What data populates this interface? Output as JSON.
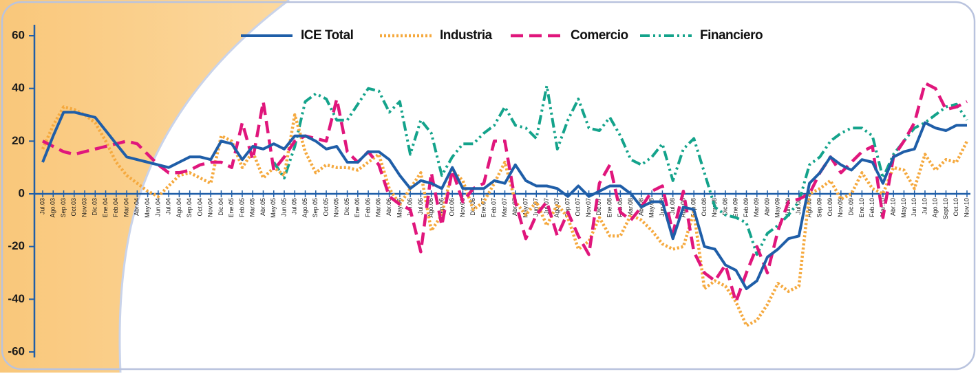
{
  "chart_data": {
    "type": "line",
    "categories": [
      "Jul.03",
      "Ago.03",
      "Sep.03",
      "Oct.03",
      "Nov.03",
      "Dic.03",
      "Ene.04",
      "Feb.04",
      "Mar.04",
      "Abr.04",
      "May.04",
      "Jun.04",
      "Jul.04",
      "Ago.04",
      "Sep.04",
      "Oct.04",
      "Nov.04",
      "Dic.04",
      "Ene.05",
      "Feb.05",
      "Mar.05",
      "Abr.05",
      "May.05",
      "Jun.05",
      "Jul.05",
      "Ago.05",
      "Sep.05",
      "Oct.05",
      "Nov.05",
      "Dic.05",
      "Ene.06",
      "Feb.06",
      "Mar.06",
      "Abr.06",
      "May.06",
      "Jun.06",
      "Jul.06",
      "Ago.06",
      "Sep.06",
      "Oct.06",
      "Nov.06",
      "Dic.06",
      "Ene.07",
      "Feb.07",
      "Mar.07",
      "Abr.07",
      "May.07",
      "Jun.07",
      "Jul.07",
      "Ago.07",
      "Sep.07",
      "Oct.07",
      "Nov.07",
      "Dic.07",
      "Ene.08",
      "Feb.08",
      "Mar.08",
      "Abr.08",
      "May.08",
      "Jun.08",
      "Jul.08",
      "Ago.08",
      "Sep.08",
      "Oct.08",
      "Nov.08",
      "Dic.08",
      "Ene.09",
      "Feb.09",
      "Mar.09",
      "Abr.09",
      "May.09",
      "Jun.09",
      "Jul.09",
      "Ago.09",
      "Sep.09",
      "Oct.09",
      "Nov.09",
      "Dic.09",
      "Ene.10",
      "Feb.10",
      "Mar.10",
      "Abr.10",
      "May.10",
      "Jun.10",
      "Jul.10",
      "Ago.10",
      "Sept.10",
      "Oct.10",
      "Nov.10"
    ],
    "series": [
      {
        "name": "ICE Total",
        "color": "#1f5ea8",
        "line_style": "solid",
        "values": [
          12,
          22,
          31,
          31,
          30,
          29,
          24,
          19,
          14,
          13,
          12,
          11,
          10,
          12,
          14,
          14,
          13,
          20,
          19,
          13,
          18,
          17,
          19,
          17,
          22,
          22,
          20,
          17,
          18,
          12,
          12,
          16,
          16,
          13,
          7,
          2,
          5,
          4,
          2,
          10,
          2,
          2,
          2,
          5,
          4,
          11,
          5,
          3,
          3,
          2,
          -1,
          3,
          -1,
          1,
          3,
          3,
          0,
          -5,
          -3,
          -3,
          -17,
          -5,
          -6,
          -20,
          -21,
          -27,
          -29,
          -36,
          -33,
          -24,
          -21,
          -17,
          -16,
          4,
          8,
          14,
          11,
          9,
          13,
          12,
          4,
          14,
          16,
          17,
          27,
          25,
          24,
          26,
          26
        ]
      },
      {
        "name": "Industria",
        "color": "#f5a93e",
        "line_style": "dotted",
        "values": [
          17,
          26,
          33,
          32,
          30,
          27,
          20,
          12,
          7,
          4,
          1,
          -1,
          3,
          7,
          8,
          6,
          4,
          22,
          20,
          10,
          16,
          6,
          10,
          7,
          30,
          16,
          8,
          11,
          10,
          10,
          9,
          12,
          15,
          2,
          -4,
          2,
          8,
          -14,
          -8,
          9,
          5,
          -6,
          -3,
          4,
          12,
          -3,
          -8,
          -3,
          -12,
          -4,
          -9,
          -21,
          -18,
          -9,
          -16,
          -16,
          -8,
          -10,
          -14,
          -19,
          -21,
          -20,
          -7,
          -36,
          -33,
          -35,
          -41,
          -50,
          -48,
          -42,
          -34,
          -37,
          -35,
          0,
          2,
          5,
          -2,
          0,
          8,
          2,
          0,
          10,
          9,
          2,
          15,
          9,
          13,
          12,
          20
        ]
      },
      {
        "name": "Comercio",
        "color": "#e0167c",
        "line_style": "dashed",
        "values": [
          20,
          18,
          16,
          15,
          16,
          17,
          18,
          19,
          20,
          19,
          15,
          11,
          8,
          8,
          9,
          11,
          12,
          12,
          10,
          27,
          13,
          35,
          9,
          14,
          20,
          22,
          21,
          20,
          36,
          16,
          12,
          16,
          11,
          -1,
          -4,
          -6,
          -22,
          8,
          -12,
          9,
          -3,
          2,
          4,
          20,
          20,
          -3,
          -17,
          -8,
          -3,
          -16,
          -7,
          -16,
          -23,
          4,
          11,
          -7,
          -10,
          -5,
          1,
          3,
          -15,
          1,
          -22,
          -30,
          -33,
          -27,
          -41,
          -30,
          -20,
          -30,
          -14,
          -3,
          -2,
          0,
          8,
          14,
          8,
          12,
          16,
          18,
          -9,
          14,
          20,
          27,
          42,
          40,
          32,
          33,
          35
        ]
      },
      {
        "name": "Financiero",
        "color": "#14a38b",
        "line_style": "dashdot",
        "values": [
          null,
          null,
          null,
          null,
          null,
          null,
          null,
          null,
          null,
          null,
          null,
          null,
          null,
          null,
          null,
          null,
          null,
          null,
          null,
          null,
          null,
          null,
          12,
          6,
          18,
          35,
          38,
          36,
          28,
          28,
          34,
          40,
          39,
          31,
          35,
          15,
          28,
          23,
          7,
          14,
          19,
          19,
          23,
          26,
          33,
          26,
          25,
          21,
          41,
          17,
          28,
          36,
          25,
          24,
          29,
          22,
          13,
          11,
          14,
          19,
          5,
          17,
          21,
          8,
          -5,
          -8,
          -9,
          -11,
          -23,
          -15,
          -12,
          -8,
          -3,
          11,
          14,
          20,
          23,
          25,
          25,
          22,
          6,
          15,
          20,
          25,
          27,
          30,
          33,
          34,
          28
        ]
      }
    ],
    "ylim": [
      -60,
      60
    ],
    "yticks": [
      -60,
      -40,
      -20,
      0,
      20,
      40,
      60
    ],
    "legend": "top"
  }
}
